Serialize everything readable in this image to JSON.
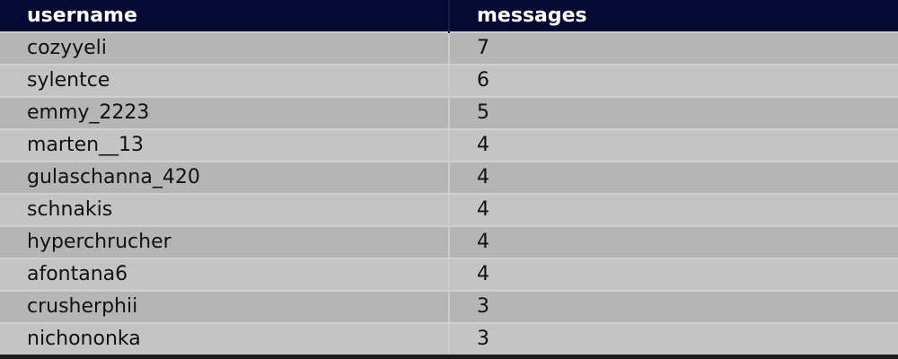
{
  "table": {
    "columns": [
      "username",
      "messages"
    ],
    "rows": [
      [
        "cozyyeli",
        "7"
      ],
      [
        "sylentce",
        "6"
      ],
      [
        "emmy_2223",
        "5"
      ],
      [
        "marten__13",
        "4"
      ],
      [
        "gulaschanna_420",
        "4"
      ],
      [
        "schnakis",
        "4"
      ],
      [
        "hyperchrucher",
        "4"
      ],
      [
        "afontana6",
        "4"
      ],
      [
        "crusherphii",
        "3"
      ],
      [
        "nichononka",
        "3"
      ]
    ]
  },
  "colors": {
    "header_bg": "#050a32",
    "row_odd": "#b5b5b5",
    "row_even": "#c4c4c4"
  }
}
